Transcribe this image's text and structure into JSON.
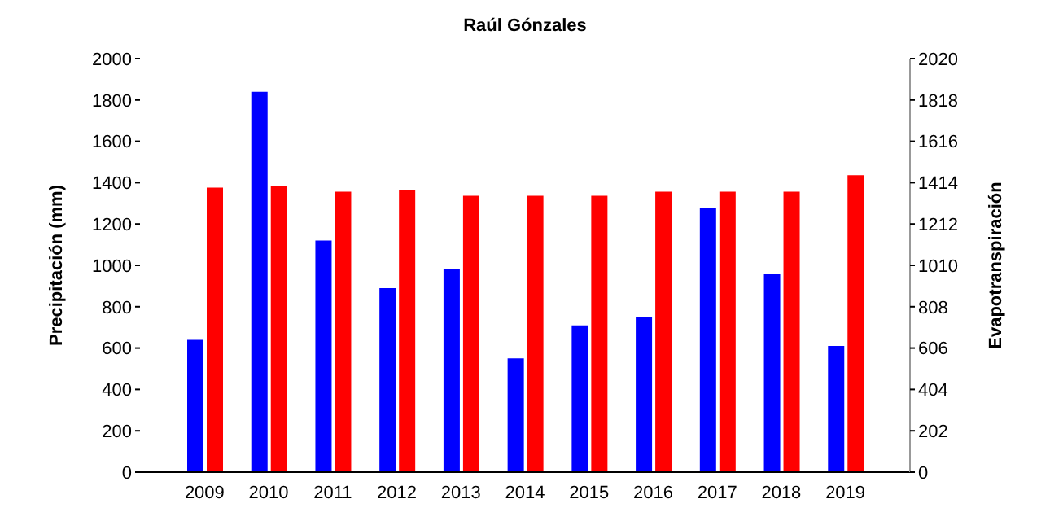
{
  "chart_data": {
    "type": "bar",
    "title": "Raúl Gónzales",
    "ylabel": "Precipitación (mm)",
    "y2label": "Evapotranspiración",
    "categories": [
      "2009",
      "2010",
      "2011",
      "2012",
      "2013",
      "2014",
      "2015",
      "2016",
      "2017",
      "2018",
      "2019"
    ],
    "series": [
      {
        "color": "#0000ff",
        "values": [
          640,
          1840,
          1120,
          890,
          980,
          550,
          710,
          750,
          1280,
          960,
          610
        ]
      },
      {
        "color": "#ff0000",
        "axis": "y2",
        "values": [
          1390,
          1400,
          1370,
          1380,
          1350,
          1350,
          1350,
          1370,
          1370,
          1370,
          1450
        ]
      }
    ],
    "ylim": [
      0,
      2000
    ],
    "yticks": [
      0,
      200,
      400,
      600,
      800,
      1000,
      1200,
      1400,
      1600,
      1800,
      2000
    ],
    "y2lim": [
      0,
      2020
    ],
    "y2ticks": [
      0,
      202,
      404,
      606,
      808,
      1010,
      1212,
      1414,
      1616,
      1818,
      2020
    ],
    "grid": false,
    "legend": false
  }
}
